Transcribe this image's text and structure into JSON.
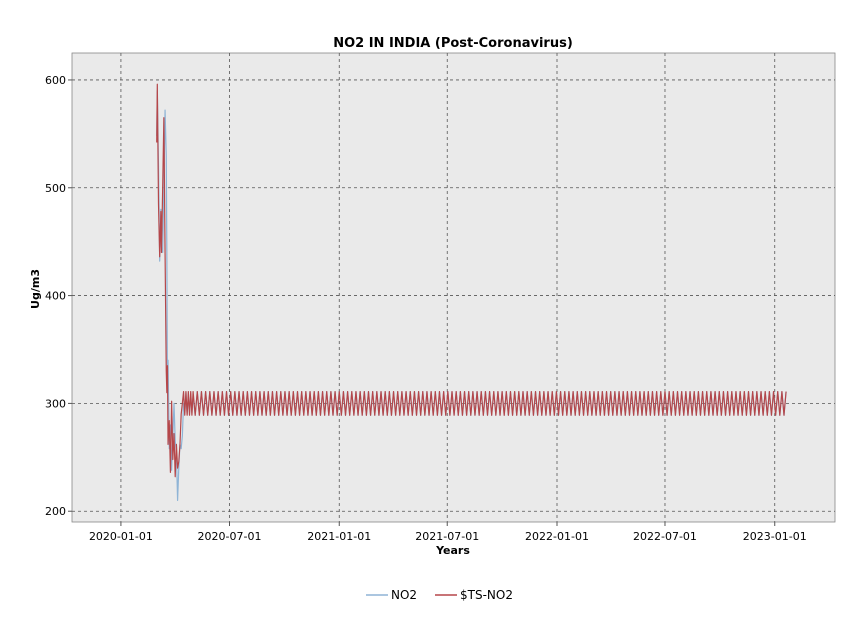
{
  "chart_data": {
    "type": "line",
    "title": "NO2 IN INDIA (Post-Coronavirus)",
    "xlabel": "Years",
    "ylabel": "Ug/m3",
    "x_ticks": [
      "2020-01-01",
      "2020-07-01",
      "2021-01-01",
      "2021-07-01",
      "2022-01-01",
      "2022-07-01",
      "2023-01-01"
    ],
    "y_ticks": [
      200,
      300,
      400,
      500,
      600
    ],
    "xlim": [
      "2019-10-11",
      "2023-04-12"
    ],
    "ylim": [
      190,
      625
    ],
    "grid": true,
    "legend_position": "bottom-center",
    "series": [
      {
        "name": "NO2",
        "color": "#8fb4d6",
        "x": [
          "2020-03-01",
          "2020-03-02",
          "2020-03-04",
          "2020-03-06",
          "2020-03-08",
          "2020-03-09",
          "2020-03-11",
          "2020-03-13",
          "2020-03-15",
          "2020-03-17",
          "2020-03-18",
          "2020-03-19",
          "2020-03-20",
          "2020-03-22",
          "2020-03-24",
          "2020-03-26",
          "2020-03-28",
          "2020-03-30",
          "2020-04-01",
          "2020-04-03",
          "2020-04-05",
          "2020-04-07",
          "2020-04-09",
          "2020-04-11",
          "2020-04-13",
          "2020-04-15",
          "2020-04-17",
          "2020-04-19",
          "2020-04-21",
          "2020-04-23",
          "2020-04-25",
          "2020-04-27",
          "2020-04-29",
          "2020-05-01"
        ],
        "values": [
          548,
          590,
          520,
          432,
          480,
          445,
          440,
          500,
          572,
          530,
          440,
          312,
          340,
          258,
          280,
          238,
          270,
          300,
          265,
          255,
          210,
          240,
          262,
          258,
          270,
          300,
          292,
          310,
          290,
          305,
          292,
          308,
          291,
          306
        ]
      },
      {
        "name": "$TS-NO2",
        "color": "#b5474a",
        "x": [
          "2020-03-01",
          "2020-03-02",
          "2020-03-04",
          "2020-03-06",
          "2020-03-08",
          "2020-03-09",
          "2020-03-11",
          "2020-03-13",
          "2020-03-15",
          "2020-03-17",
          "2020-03-18",
          "2020-03-19",
          "2020-03-20",
          "2020-03-22",
          "2020-03-24",
          "2020-03-26",
          "2020-03-28",
          "2020-03-30",
          "2020-04-01",
          "2020-04-03",
          "2020-04-05",
          "2020-04-07",
          "2020-04-09",
          "2020-04-11",
          "2020-04-13",
          "2020-04-15",
          "2020-04-17",
          "2020-04-19",
          "2020-04-21",
          "2020-04-23",
          "2020-04-25",
          "2020-04-27",
          "2020-04-29",
          "2020-05-01"
        ],
        "values": [
          542,
          596,
          485,
          436,
          478,
          440,
          500,
          565,
          440,
          330,
          310,
          335,
          262,
          284,
          236,
          302,
          248,
          272,
          232,
          262,
          240,
          246,
          262,
          290,
          300,
          311,
          289,
          311,
          289,
          311,
          289,
          311,
          289,
          311
        ]
      }
    ],
    "oscillation": {
      "start": "2020-05-01",
      "end": "2023-01-22",
      "high": 311,
      "low": 289,
      "period_days": 7
    }
  }
}
